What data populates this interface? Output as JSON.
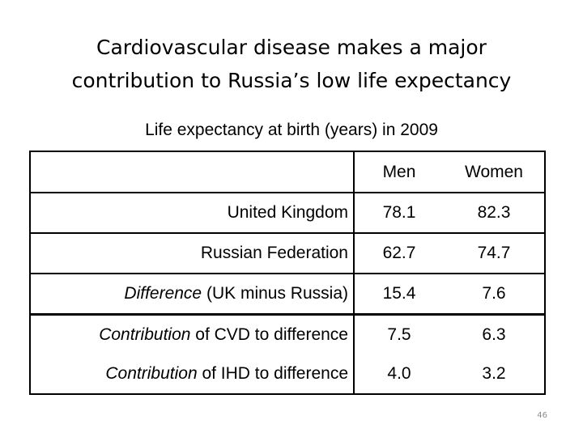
{
  "slide": {
    "title_line1": "Cardiovascular disease makes a major",
    "title_line2": "contribution to Russia’s low life expectancy",
    "subtitle": "Life expectancy at birth (years) in 2009",
    "page_number": "46"
  },
  "table": {
    "headers": [
      "",
      "Men",
      "Women"
    ],
    "rows": [
      {
        "label_italic": "",
        "label": "United Kingdom",
        "men": "78.1",
        "women": "82.3"
      },
      {
        "label_italic": "",
        "label": "Russian Federation",
        "men": "62.7",
        "women": "74.7"
      },
      {
        "label_italic": "Difference",
        "label": " (UK minus Russia)",
        "men": "15.4",
        "women": "7.6"
      },
      {
        "label_italic": "Contribution",
        "label": " of CVD to difference",
        "men": "7.5",
        "women": "6.3"
      },
      {
        "label_italic": "Contribution",
        "label": " of IHD to difference",
        "men": "4.0",
        "women": "3.2"
      }
    ]
  }
}
